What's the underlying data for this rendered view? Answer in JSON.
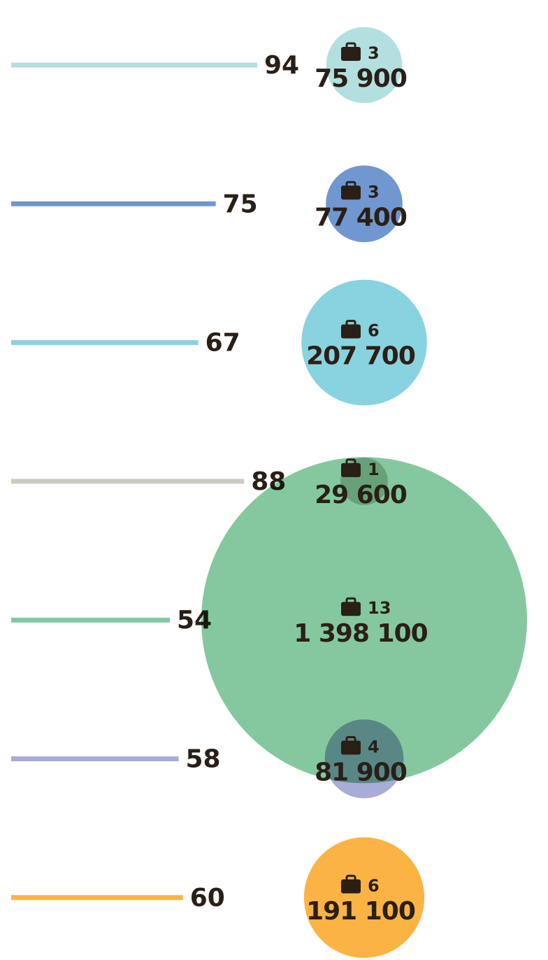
{
  "chart_data": {
    "type": "bar-bubble",
    "values": [
      94,
      75,
      67,
      88,
      54,
      58,
      60
    ],
    "counts": [
      3,
      3,
      6,
      1,
      13,
      4,
      6
    ],
    "sizes": [
      75900,
      77400,
      207700,
      29600,
      1398100,
      81900,
      191100
    ],
    "size_labels": [
      "75 900",
      "77 400",
      "207 700",
      "29 600",
      "1 398 100",
      "81 900",
      "191 100"
    ],
    "colors": [
      "#b4dfe0",
      "#7097cf",
      "#89d2df",
      "#c8cdc0",
      "#85c8a0",
      "#a9acd6",
      "#fbb443"
    ],
    "xlim": [
      -18.64,
      100
    ]
  }
}
